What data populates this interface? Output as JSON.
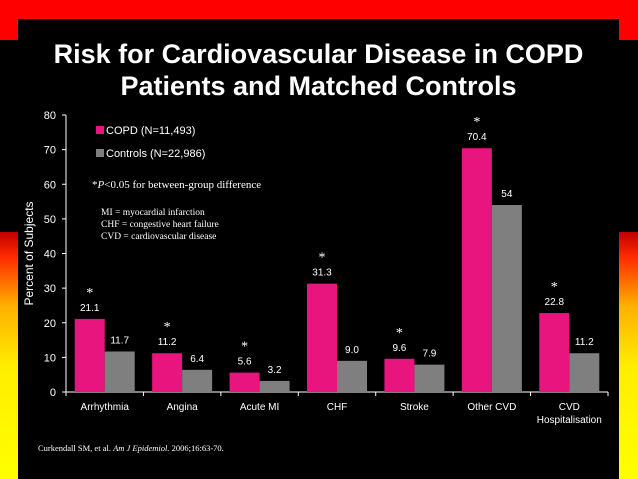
{
  "title": {
    "line1": "Risk for Cardiovascular Disease in COPD",
    "line2": "Patients and Matched Controls"
  },
  "colors": {
    "copd": "#e8157f",
    "controls": "#7f7f7f",
    "background": "#000000",
    "text": "#ffffff"
  },
  "chart_data": {
    "type": "bar",
    "categories": [
      "Arrhythmia",
      "Angina",
      "Acute MI",
      "CHF",
      "Stroke",
      "Other CVD",
      "CVD Hospitalisation"
    ],
    "series": [
      {
        "name": "COPD (N=11,493)",
        "values": [
          21.1,
          11.2,
          5.6,
          31.3,
          9.6,
          70.4,
          22.8
        ]
      },
      {
        "name": "Controls (N=22,986)",
        "values": [
          11.7,
          6.4,
          3.2,
          9.0,
          7.9,
          54,
          11.2
        ]
      }
    ],
    "value_labels": [
      [
        "21.1",
        "11.2",
        "5.6",
        "31.3",
        "9.6",
        "70.4",
        "22.8"
      ],
      [
        "11.7",
        "6.4",
        "3.2",
        "9.0",
        "7.9",
        "54",
        "11.2"
      ]
    ],
    "significant": [
      true,
      true,
      true,
      true,
      true,
      true,
      true
    ],
    "significance_marker": "*",
    "ylabel": "Percent of Subjects",
    "xlabel": "",
    "ylim": [
      0,
      80
    ],
    "yticks": [
      0,
      10,
      20,
      30,
      40,
      50,
      60,
      70,
      80
    ],
    "legend_position": "top-left",
    "grid": false,
    "footnote": "*P<0.05 for between-group difference",
    "abbreviations": [
      "MI = myocardial infarction",
      "CHF = congestive heart failure",
      "CVD = cardiovascular disease"
    ]
  },
  "citation": {
    "authors": "Curkendall SM, et al.",
    "journal": "Am J Epidemiol.",
    "details": "2006;16:63-70."
  }
}
